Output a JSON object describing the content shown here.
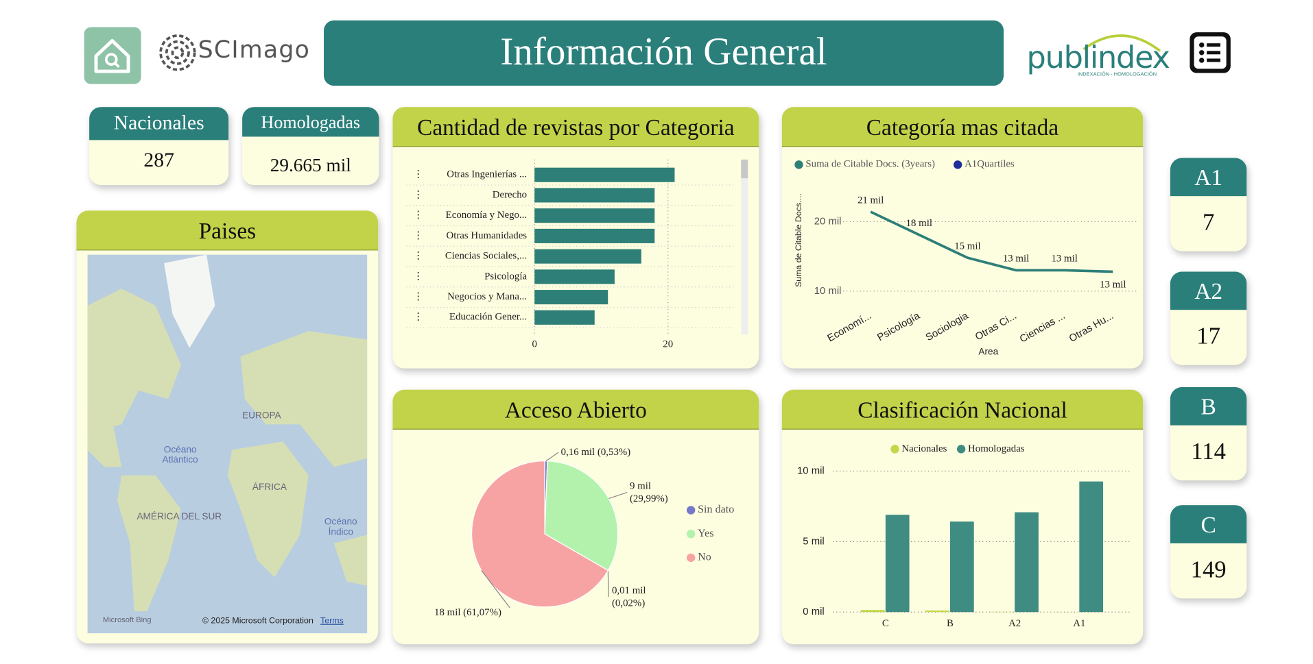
{
  "header": {
    "title": "Información General",
    "brand_left": "SCImago",
    "brand_right": "publindex",
    "brand_right_sub": "INDEXACIÓN - HOMOLOGACIÓN"
  },
  "kpis": [
    {
      "label": "Nacionales",
      "value": 287
    },
    {
      "label": "Homologadas",
      "value": "29.665 mil"
    }
  ],
  "map": {
    "title": "Paises",
    "labels": [
      "EUROPA",
      "Océano Atlántico",
      "ÁFRICA",
      "AMÉRICA DEL SUR",
      "Océano Índico"
    ],
    "attribution": "Microsoft Bing",
    "copyright": "© 2025 Microsoft Corporation",
    "terms": "Terms"
  },
  "category_cards": [
    {
      "label": "A1",
      "value": 7
    },
    {
      "label": "A2",
      "value": 17
    },
    {
      "label": "B",
      "value": 114
    },
    {
      "label": "C",
      "value": 149
    }
  ],
  "chart_data": [
    {
      "type": "bar",
      "orientation": "horizontal",
      "title": "Cantidad de revistas por Categoria",
      "categories": [
        "Otras Ingenierías ...",
        "Derecho",
        "Economía y Nego...",
        "Otras Humanidades",
        "Ciencias Sociales,...",
        "Psicología",
        "Negocios y Mana...",
        "Educación Gener..."
      ],
      "values": [
        21,
        18,
        18,
        18,
        16,
        12,
        11,
        9
      ],
      "color": "#2e7f78",
      "xlim": [
        0,
        30
      ],
      "xticks": [
        0,
        20
      ],
      "grid": true
    },
    {
      "type": "line",
      "title": "Categoría mas citada",
      "x_label": "Area",
      "y_label": "Suma de Citable Docs....",
      "categories": [
        "Economí...",
        "Psicología",
        "Sociologia",
        "Otras Ci...",
        "Ciencias ...",
        "Otras Hu..."
      ],
      "series": [
        {
          "name": "Suma de Citable Docs. (3years)",
          "color": "#2e7f78",
          "values": [
            21400,
            18100,
            14800,
            13000,
            13000,
            12800
          ],
          "value_labels": [
            "21 mil",
            "18 mil",
            "15 mil",
            "13 mil",
            "13 mil",
            "13 mil"
          ]
        },
        {
          "name": "A1Quartiles",
          "color": "#1f2f9a",
          "values": [
            null,
            null,
            null,
            null,
            null,
            null
          ]
        }
      ],
      "ylim": [
        8000,
        24000
      ],
      "yticks": [
        {
          "value": 10000,
          "label": "10 mil"
        },
        {
          "value": 20000,
          "label": "20 mil"
        }
      ],
      "grid": true
    },
    {
      "type": "pie",
      "title": "Acceso Abierto",
      "categories": [
        "Sin dato",
        "Yes",
        null,
        "No"
      ],
      "values": [
        0.53,
        29.99,
        0.02,
        61.07
      ],
      "value_labels": [
        "0,16 mil (0,53%)",
        "9 mil (29,99%)",
        "0,01 mil (0,02%)",
        "18 mil (61,07%)"
      ],
      "colors": [
        "#7579c9",
        "#b3f2ad",
        "#ead27a",
        "#f7a3a3"
      ]
    },
    {
      "type": "bar",
      "orientation": "vertical",
      "title": "Clasificación Nacional",
      "categories": [
        "C",
        "B",
        "A2",
        "A1"
      ],
      "series": [
        {
          "name": "Nacionales",
          "color": "#c2d84a",
          "values": [
            149,
            114,
            17,
            7
          ]
        },
        {
          "name": "Homologadas",
          "color": "#3f8c82",
          "values": [
            6900,
            6420,
            7080,
            9265
          ]
        }
      ],
      "ylim": [
        0,
        10600
      ],
      "yticks": [
        {
          "value": 0,
          "label": "0 mil"
        },
        {
          "value": 5000,
          "label": "5 mil"
        },
        {
          "value": 10000,
          "label": "10 mil"
        }
      ],
      "grid": true
    }
  ]
}
